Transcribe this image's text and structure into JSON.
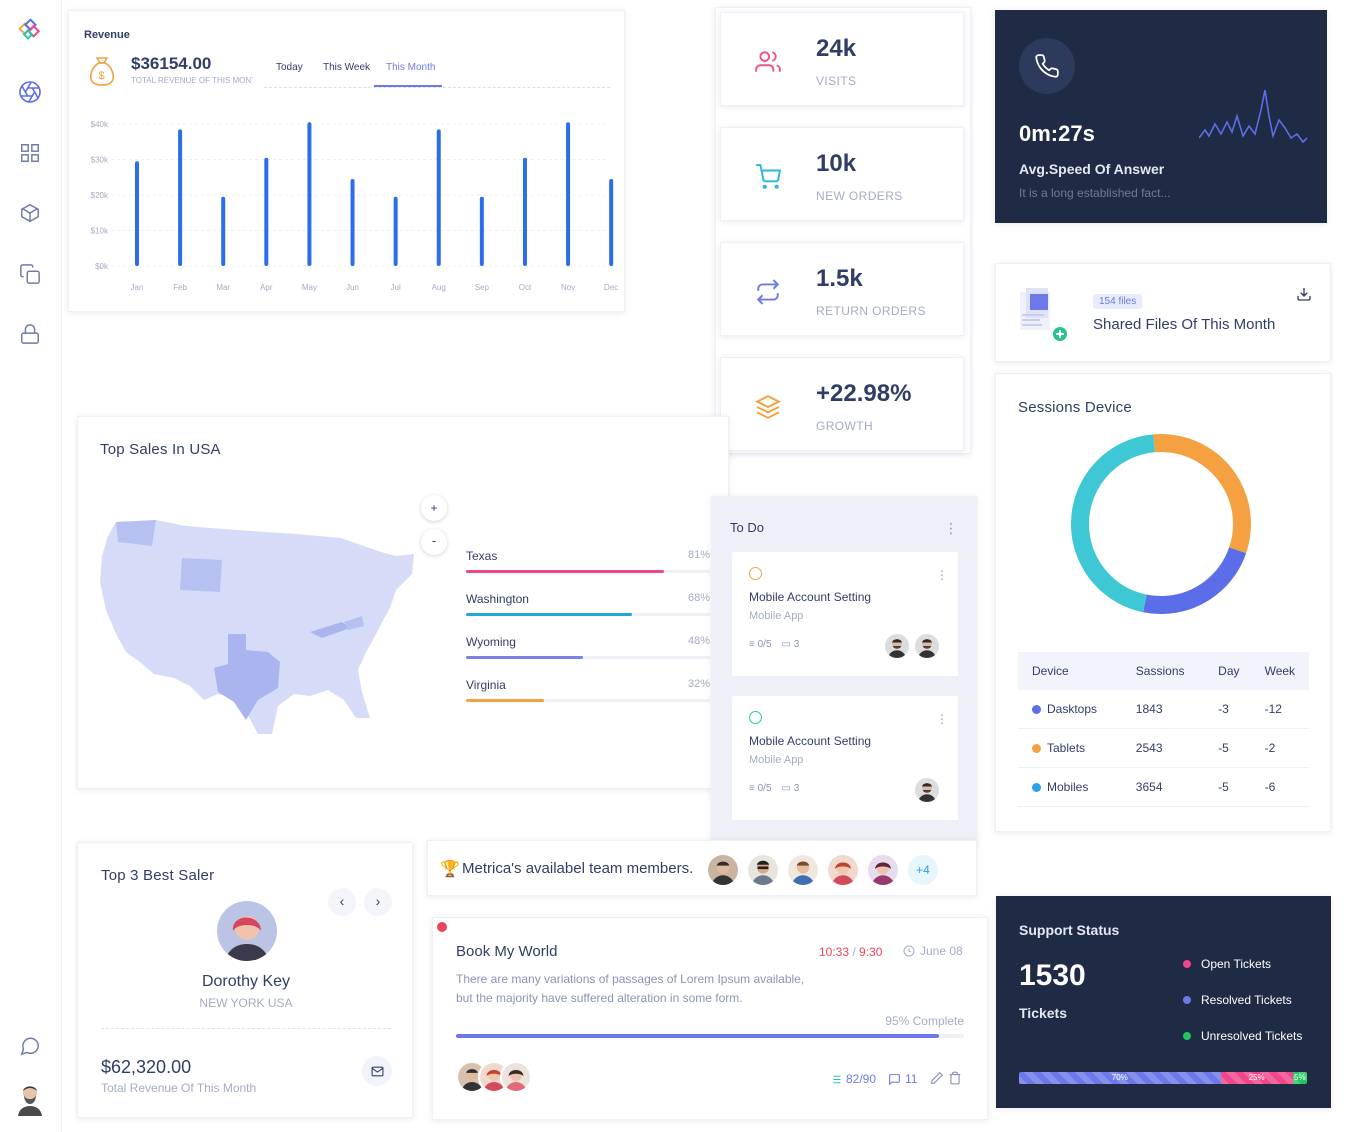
{
  "revenue": {
    "title": "Revenue",
    "amount": "$36154.00",
    "subtitle": "TOTAL REVENUE OF THIS MONTH",
    "tabs": [
      "Today",
      "This Week",
      "This Month"
    ],
    "active_tab": "This Month"
  },
  "chart_data": {
    "type": "bar",
    "categories": [
      "Jan",
      "Feb",
      "Mar",
      "Apr",
      "May",
      "Jun",
      "Jul",
      "Aug",
      "Sep",
      "Oct",
      "Nov",
      "Dec"
    ],
    "values": [
      29500,
      38500,
      19500,
      30500,
      40500,
      24500,
      19500,
      38500,
      19500,
      30500,
      40500,
      24500
    ],
    "ylim": [
      0,
      40000
    ],
    "yticks": [
      "$0k",
      "$10k",
      "$20k",
      "$30k",
      "$40k"
    ],
    "grid": true,
    "color": "#2c6ded"
  },
  "stats": [
    {
      "value": "24k",
      "label": "VISITS",
      "icon": "users-icon",
      "color": "#f0548a"
    },
    {
      "value": "10k",
      "label": "NEW ORDERS",
      "icon": "cart-icon",
      "color": "#2bb8d6"
    },
    {
      "value": "1.5k",
      "label": "RETURN ORDERS",
      "icon": "repeat-icon",
      "color": "#6d79e8"
    },
    {
      "value": "+22.98%",
      "label": "GROWTH",
      "icon": "layers-icon",
      "color": "#f5a142"
    }
  ],
  "call": {
    "time": "0m:27s",
    "title": "Avg.Speed Of Answer",
    "desc": "It is a long established fact..."
  },
  "files": {
    "badge": "154 files",
    "title": "Shared Files Of This Month"
  },
  "sessions": {
    "title": "Sessions Device",
    "donut": [
      {
        "name": "Dasktops",
        "value": 1843,
        "color": "#5b6de8"
      },
      {
        "name": "Tablets",
        "value": 2543,
        "color": "#f5a142"
      },
      {
        "name": "Mobiles",
        "value": 3654,
        "color": "#3ec7d4"
      }
    ],
    "headers": [
      "Device",
      "Sassions",
      "Day",
      "Week"
    ],
    "rows": [
      {
        "device": "Dasktops",
        "sessions": "1843",
        "day": "-3",
        "week": "-12",
        "color": "#5b6de8"
      },
      {
        "device": "Tablets",
        "sessions": "2543",
        "day": "-5",
        "week": "-2",
        "color": "#f5a142"
      },
      {
        "device": "Mobiles",
        "sessions": "3654",
        "day": "-5",
        "week": "-6",
        "color": "#2ba1e8"
      }
    ]
  },
  "usa": {
    "title": "Top Sales In USA",
    "zoom_in": "+",
    "zoom_out": "-",
    "states": [
      {
        "name": "Texas",
        "pct": "81%",
        "value": 0.81,
        "color": "#f0468a"
      },
      {
        "name": "Washington",
        "pct": "68%",
        "value": 0.68,
        "color": "#20a8d8"
      },
      {
        "name": "Wyoming",
        "pct": "48%",
        "value": 0.48,
        "color": "#7c7fe8"
      },
      {
        "name": "Virginia",
        "pct": "32%",
        "value": 0.32,
        "color": "#f5a142"
      }
    ]
  },
  "todo": {
    "title": "To Do",
    "items": [
      {
        "title": "Mobile Account Setting",
        "sub": "Mobile App",
        "tasks": "0/5",
        "comments": "3",
        "color": "#f5a142"
      },
      {
        "title": "Mobile Account Setting",
        "sub": "Mobile App",
        "tasks": "0/5",
        "comments": "3",
        "color": "#20c9a6"
      }
    ]
  },
  "team": {
    "text": "Metrica's availabel team members.",
    "more": "+4"
  },
  "saler": {
    "title": "Top 3 Best Saler",
    "name": "Dorothy Key",
    "location": "NEW YORK USA",
    "amount": "$62,320.00",
    "amount_label": "Total Revenue Of This Month"
  },
  "project": {
    "title": "Book My World",
    "time_start": "10:33",
    "time_sep": " / ",
    "time_end": "9:30",
    "date": "June 08",
    "desc1": "There are many variations of passages of Lorem Ipsum available,",
    "desc2": "but the majority have suffered alteration in some form.",
    "progress_label": "95% Complete",
    "progress": 0.95,
    "tasks": "82/90",
    "comments": "11"
  },
  "support": {
    "title": "Support Status",
    "count": "1530",
    "unit": "Tickets",
    "legend": [
      {
        "label": "Open Tickets",
        "color": "#f0468a"
      },
      {
        "label": "Resolved Tickets",
        "color": "#6d79e8"
      },
      {
        "label": "Unresolved Tickets",
        "color": "#22c55e"
      }
    ],
    "segments": [
      {
        "label": "70%",
        "value": 0.7,
        "color": "#6d79e8"
      },
      {
        "label": "25%",
        "value": 0.25,
        "color": "#f0468a"
      },
      {
        "label": "5%",
        "value": 0.05,
        "color": "#22c55e"
      }
    ]
  }
}
